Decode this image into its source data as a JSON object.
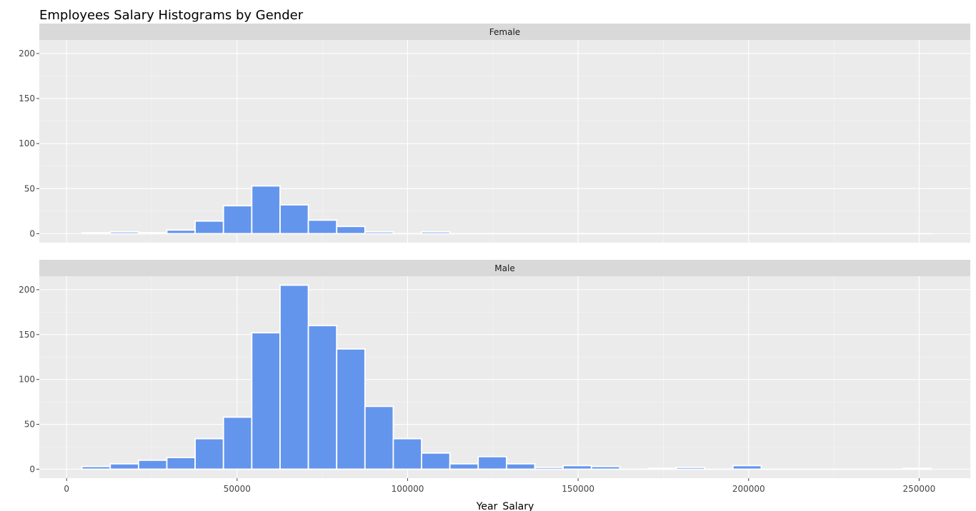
{
  "chart_data": {
    "type": "bar",
    "title": "Employees Salary Histograms by Gender",
    "xlabel": "Year_Salary",
    "ylabel": "",
    "xlim": [
      -8000,
      265000
    ],
    "ylim": [
      -10,
      215
    ],
    "x_ticks": [
      0,
      50000,
      100000,
      150000,
      200000,
      250000
    ],
    "y_ticks": [
      0,
      50,
      100,
      150,
      200
    ],
    "bar_color": "#6495ed",
    "bar_outline_color": "#ffffff",
    "panel_background": "#ebebeb",
    "strip_background": "#d9d9d9",
    "grid": true,
    "bin_width": 8300,
    "bin_starts": [
      4500,
      12800,
      21100,
      29400,
      37700,
      46000,
      54300,
      62600,
      70900,
      79200,
      87500,
      95800,
      104100,
      112400,
      120700,
      129000,
      137300,
      145600,
      153900,
      162200,
      170500,
      178800,
      187100,
      195400,
      203700,
      212000,
      220300,
      228600,
      236900,
      245200
    ],
    "panels": [
      {
        "name": "Female",
        "values": [
          1,
          2,
          1,
          4,
          14,
          31,
          53,
          32,
          15,
          8,
          2,
          0,
          2,
          0,
          0,
          0,
          0,
          0,
          0,
          0,
          0,
          0,
          0,
          0,
          0,
          0,
          0,
          0,
          0,
          0
        ]
      },
      {
        "name": "Male",
        "values": [
          3,
          6,
          10,
          13,
          34,
          58,
          152,
          205,
          160,
          134,
          70,
          34,
          18,
          6,
          14,
          6,
          2,
          4,
          3,
          0,
          1,
          2,
          0,
          4,
          0,
          0,
          0,
          0,
          0,
          1
        ]
      }
    ]
  }
}
